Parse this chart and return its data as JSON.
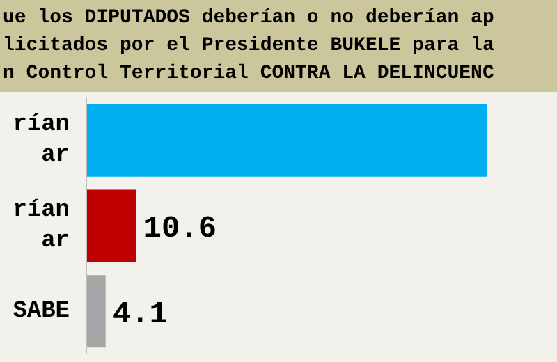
{
  "chart_data": {
    "type": "bar",
    "orientation": "horizontal",
    "title": "ue los DIPUTADOS deberían o no deberían ap\nlicitados por el Presidente BUKELE para la\nn Control Territorial CONTRA LA DELINCUENC",
    "categories": [
      "rían\nar",
      "rían\nar",
      "SABE"
    ],
    "values": [
      85.3,
      10.6,
      4.1
    ],
    "colors": [
      "#00b0f0",
      "#c00000",
      "#a6a6a6"
    ],
    "value_labels": [
      null,
      "10.6",
      "4.1"
    ]
  }
}
